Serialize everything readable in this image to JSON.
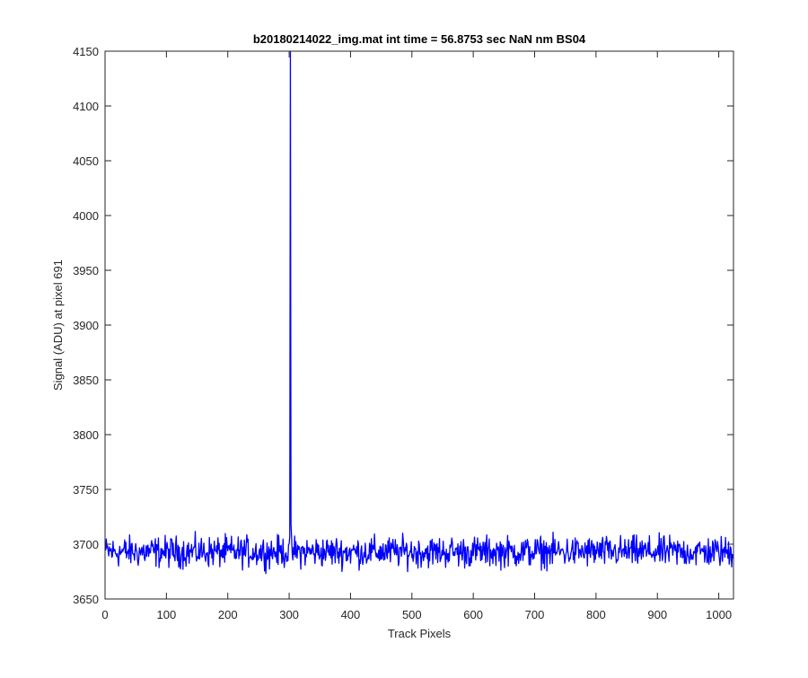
{
  "chart_data": {
    "type": "line",
    "title": "b20180214022_img.mat int time = 56.8753 sec  NaN nm BS04",
    "xlabel": "Track Pixels",
    "ylabel": "Signal (ADU) at pixel 691",
    "xlim": [
      0,
      1024
    ],
    "ylim": [
      3650,
      4150
    ],
    "xticks": [
      0,
      100,
      200,
      300,
      400,
      500,
      600,
      700,
      800,
      900,
      1000
    ],
    "yticks": [
      3650,
      3700,
      3750,
      3800,
      3850,
      3900,
      3950,
      4000,
      4050,
      4100,
      4150
    ],
    "grid": false,
    "legend": "none",
    "line_color": "#0000ff",
    "series": [
      {
        "baseline": 3693,
        "noise_amplitude": 13,
        "x_start": 1,
        "x_end": 1024,
        "spikes": [
          {
            "x": 302,
            "y": 4150
          },
          {
            "x": 303,
            "y": 3718
          }
        ]
      }
    ]
  }
}
